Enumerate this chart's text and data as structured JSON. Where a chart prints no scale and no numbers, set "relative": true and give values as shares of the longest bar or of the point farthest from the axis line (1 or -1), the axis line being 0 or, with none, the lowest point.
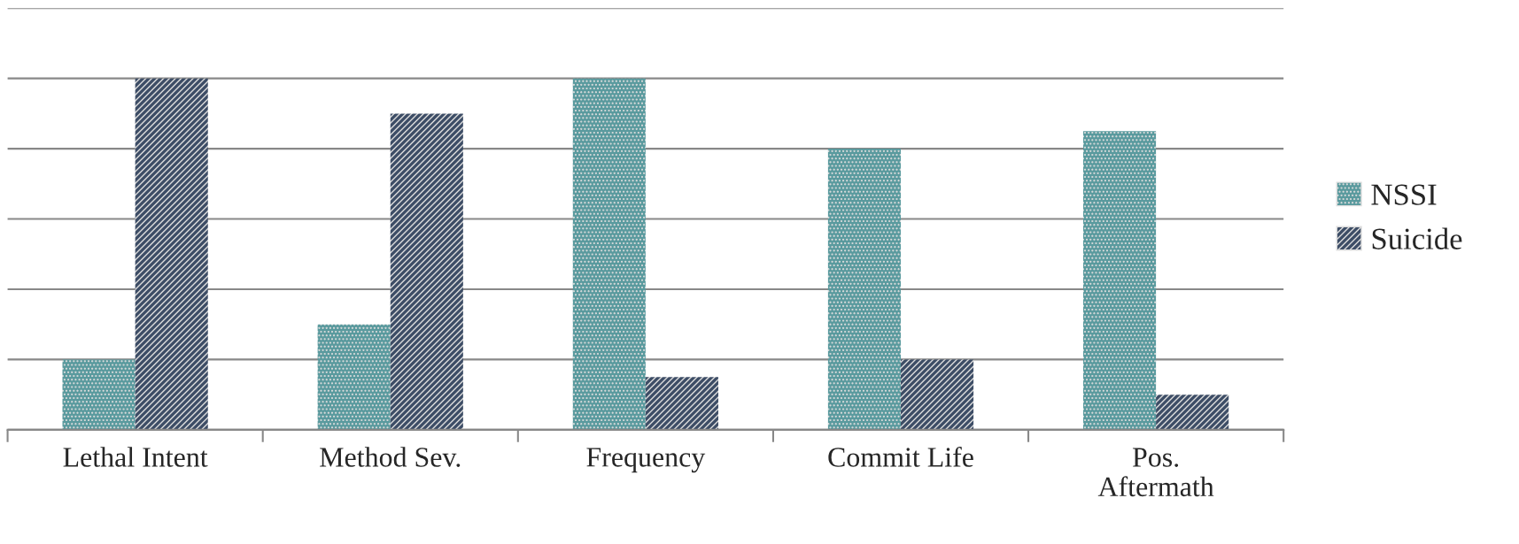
{
  "chart_data": {
    "type": "bar",
    "relative": true,
    "grid": "y",
    "legend": "right",
    "categories": [
      "Lethal Intent",
      "Method Sev.",
      "Frequency",
      "Commit Life",
      "Pos.\nAftermath"
    ],
    "series": [
      {
        "name": "NSSI",
        "color": "#5a9a9e",
        "values": [
          0.2,
          0.3,
          1.0,
          0.8,
          0.85
        ]
      },
      {
        "name": "Suicide",
        "color": "#3d4d66",
        "values": [
          1.0,
          0.9,
          0.15,
          0.2,
          0.1
        ]
      }
    ]
  }
}
